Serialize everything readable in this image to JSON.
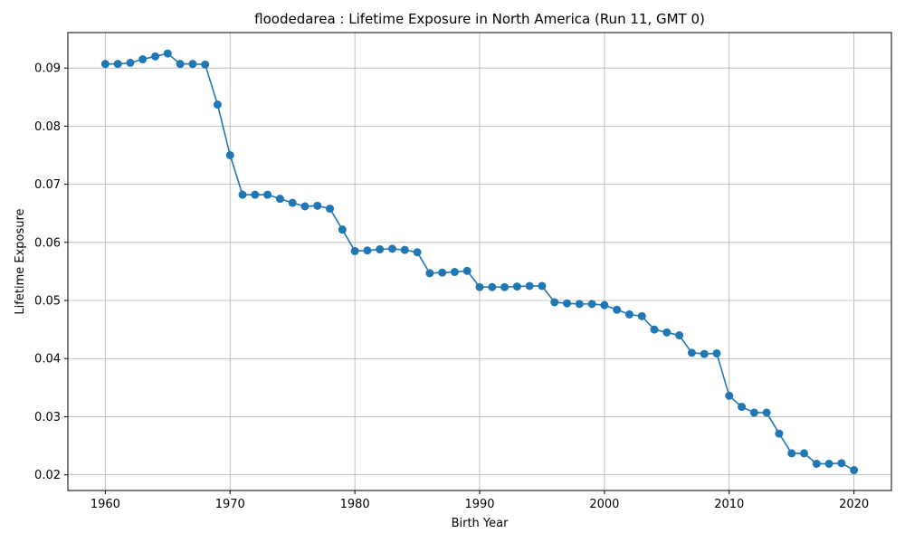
{
  "chart_data": {
    "type": "line",
    "title": "floodedarea : Lifetime Exposure in North America (Run 11, GMT 0)",
    "xlabel": "Birth Year",
    "ylabel": "Lifetime Exposure",
    "xlim": [
      1957,
      2023
    ],
    "ylim": [
      0.0173,
      0.0961
    ],
    "x_ticks": [
      1960,
      1970,
      1980,
      1990,
      2000,
      2010,
      2020
    ],
    "x_tick_labels": [
      "1960",
      "1970",
      "1980",
      "1990",
      "2000",
      "2010",
      "2020"
    ],
    "y_ticks": [
      0.02,
      0.03,
      0.04,
      0.05,
      0.06,
      0.07,
      0.08,
      0.09
    ],
    "y_tick_labels": [
      "0.02",
      "0.03",
      "0.04",
      "0.05",
      "0.06",
      "0.07",
      "0.08",
      "0.09"
    ],
    "grid": true,
    "marker": "circle",
    "color": "#1f77b4",
    "series": [
      {
        "x": [
          1960,
          1961,
          1962,
          1963,
          1964,
          1965,
          1966,
          1967,
          1968,
          1969,
          1970,
          1971,
          1972,
          1973,
          1974,
          1975,
          1976,
          1977,
          1978,
          1979,
          1980,
          1981,
          1982,
          1983,
          1984,
          1985,
          1986,
          1987,
          1988,
          1989,
          1990,
          1991,
          1992,
          1993,
          1994,
          1995,
          1996,
          1997,
          1998,
          1999,
          2000,
          2001,
          2002,
          2003,
          2004,
          2005,
          2006,
          2007,
          2008,
          2009,
          2010,
          2011,
          2012,
          2013,
          2014,
          2015,
          2016,
          2017,
          2018,
          2019,
          2020
        ],
        "values": [
          0.0907,
          0.0907,
          0.0909,
          0.0915,
          0.092,
          0.0925,
          0.0907,
          0.0907,
          0.0906,
          0.0837,
          0.075,
          0.0682,
          0.0682,
          0.0682,
          0.0675,
          0.0668,
          0.0662,
          0.0663,
          0.0658,
          0.0622,
          0.0585,
          0.0586,
          0.0588,
          0.0589,
          0.0587,
          0.0583,
          0.0547,
          0.0548,
          0.0549,
          0.0551,
          0.0523,
          0.0523,
          0.0523,
          0.0524,
          0.0525,
          0.0525,
          0.0497,
          0.0495,
          0.0494,
          0.0494,
          0.0492,
          0.0484,
          0.0476,
          0.0473,
          0.045,
          0.0445,
          0.044,
          0.041,
          0.0408,
          0.0409,
          0.0336,
          0.0317,
          0.0307,
          0.0307,
          0.0271,
          0.0237,
          0.0237,
          0.0219,
          0.0219,
          0.022,
          0.0208
        ]
      }
    ]
  }
}
